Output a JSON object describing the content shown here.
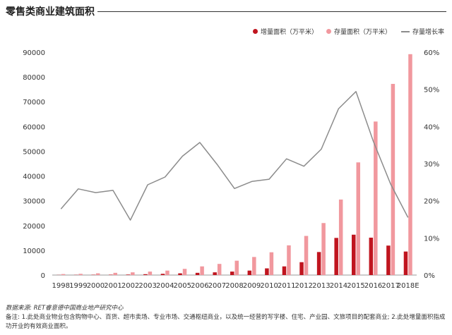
{
  "header": {
    "title": "零售类商业建筑面积"
  },
  "legend": {
    "items": [
      {
        "label": "增量面积（万平米）",
        "color": "#c0151f",
        "kind": "dot"
      },
      {
        "label": "存量面积（万平米）",
        "color": "#f1989e",
        "kind": "dot"
      },
      {
        "label": "存量增长率",
        "color": "#8c8c8c",
        "kind": "line"
      }
    ]
  },
  "chart_data": {
    "type": "bar",
    "title": "零售类商业建筑面积",
    "categories": [
      "1998",
      "1999",
      "2000",
      "2001",
      "2002",
      "2003",
      "2004",
      "2005",
      "2006",
      "2007",
      "2008",
      "2009",
      "2010",
      "2011",
      "2012",
      "2013",
      "2014",
      "2015",
      "2016",
      "2017",
      "2018E"
    ],
    "series": [
      {
        "name": "增量面积（万平米）",
        "type": "bar",
        "axis": "left",
        "color": "#c0151f",
        "values": [
          50,
          80,
          120,
          150,
          200,
          350,
          500,
          700,
          900,
          1100,
          1400,
          1800,
          2700,
          3500,
          5200,
          9300,
          15000,
          16300,
          15100,
          11900,
          9500
        ]
      },
      {
        "name": "存量面积（万平米）",
        "type": "bar",
        "axis": "left",
        "color": "#f1989e",
        "values": [
          400,
          500,
          700,
          900,
          1100,
          1400,
          1800,
          2500,
          3500,
          4500,
          5800,
          7300,
          9200,
          12000,
          15800,
          21000,
          30500,
          45500,
          62000,
          77200,
          89200
        ]
      },
      {
        "name": "存量增长率",
        "type": "line",
        "axis": "right",
        "color": "#8c8c8c",
        "values": [
          17.8,
          23.2,
          22.2,
          22.8,
          14.8,
          24.3,
          26.4,
          32.0,
          35.7,
          29.8,
          23.3,
          25.2,
          25.8,
          31.3,
          29.3,
          33.9,
          44.8,
          49.4,
          36.0,
          24.5,
          15.5
        ]
      }
    ],
    "y_left": {
      "ticks": [
        0,
        10000,
        20000,
        30000,
        40000,
        50000,
        60000,
        70000,
        80000,
        90000
      ],
      "ylim": [
        0,
        90000
      ]
    },
    "y_right": {
      "ticks": [
        "0%",
        "10%",
        "20%",
        "30%",
        "40%",
        "50%",
        "60%"
      ],
      "ylim": [
        0,
        60
      ]
    },
    "xlabel": "",
    "ylabel": "",
    "legend_position": "top-right",
    "grid": false
  },
  "footer": {
    "source": "数据来源: RET睿意德中国商业地产研究中心",
    "note": "备注: 1.此处商业物业包含购物中心、百货、超市卖场、专业市场、交通枢纽商业，以及统一经营的写字楼、住宅、产业园、文旅项目的配套商业; 2.此处增量面积指成功开业的有效商业面积。"
  }
}
